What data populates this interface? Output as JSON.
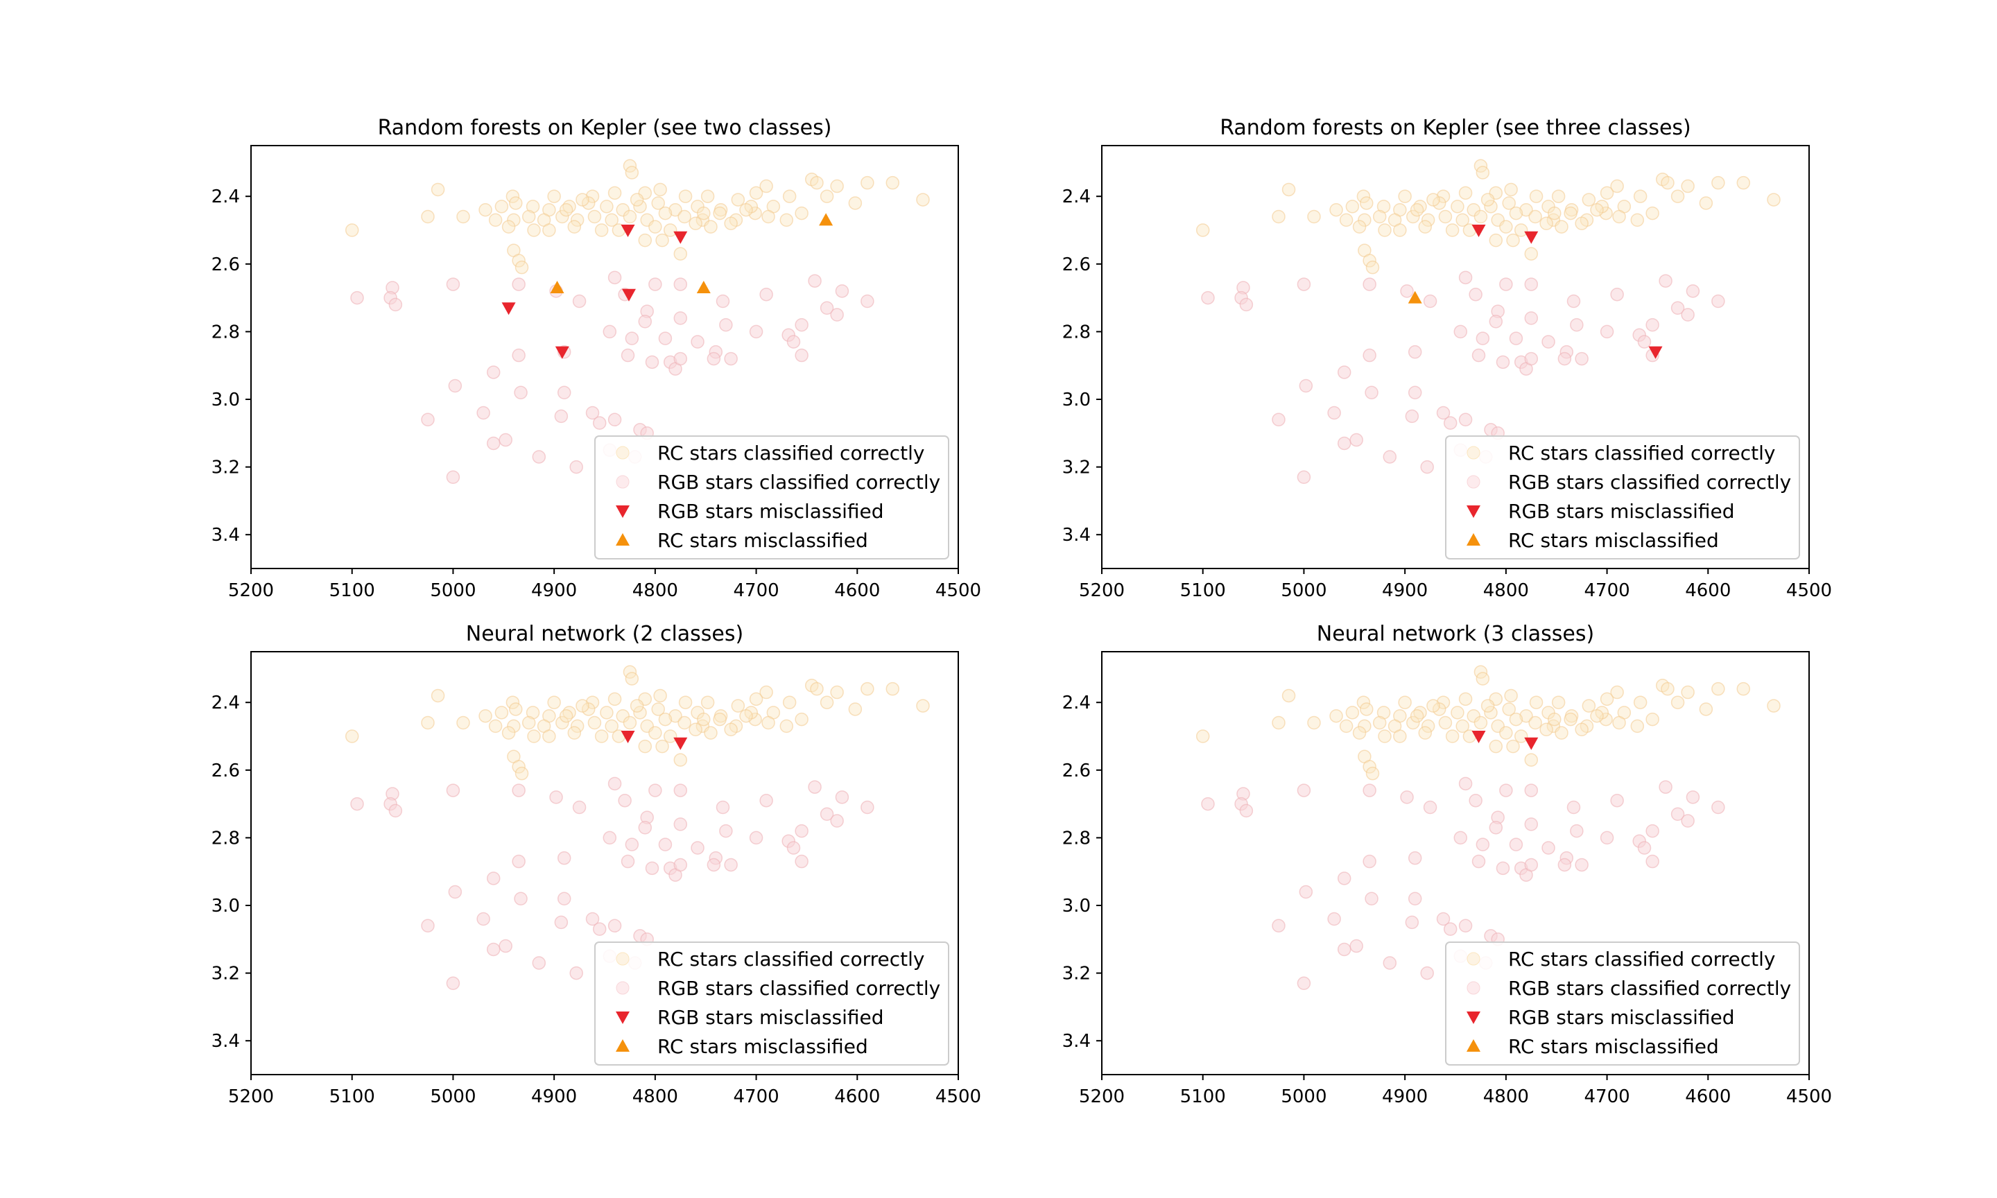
{
  "chart_data": [
    {
      "type": "scatter",
      "title": "Random forests on Kepler (see two classes)",
      "xlabel": "",
      "ylabel": "",
      "xlim": [
        5200,
        4500
      ],
      "ylim": [
        3.5,
        2.25
      ],
      "x_ticks": [
        "5200",
        "5100",
        "5000",
        "4900",
        "4800",
        "4700",
        "4600",
        "4500"
      ],
      "y_ticks": [
        "2.4",
        "2.6",
        "2.8",
        "3.0",
        "3.2",
        "3.4"
      ],
      "legend_position": "bottom-right",
      "series": [
        {
          "name": "RC stars classified correctly",
          "key": "rc_ok"
        },
        {
          "name": "RGB stars classified correctly",
          "key": "rgb_ok"
        },
        {
          "name": "RGB stars misclassified",
          "key": "rgb_mis",
          "points": [
            [
              4827,
              2.5
            ],
            [
              4775,
              2.52
            ],
            [
              4826,
              2.69
            ],
            [
              4945,
              2.73
            ],
            [
              4892,
              2.86
            ]
          ]
        },
        {
          "name": "RC stars misclassified",
          "key": "rc_mis",
          "points": [
            [
              4631,
              2.47
            ],
            [
              4897,
              2.67
            ],
            [
              4752,
              2.67
            ]
          ]
        }
      ]
    },
    {
      "type": "scatter",
      "title": "Random forests on Kepler (see three classes)",
      "xlabel": "",
      "ylabel": "",
      "xlim": [
        5200,
        4500
      ],
      "ylim": [
        3.5,
        2.25
      ],
      "x_ticks": [
        "5200",
        "5100",
        "5000",
        "4900",
        "4800",
        "4700",
        "4600",
        "4500"
      ],
      "y_ticks": [
        "2.4",
        "2.6",
        "2.8",
        "3.0",
        "3.2",
        "3.4"
      ],
      "legend_position": "bottom-right",
      "series": [
        {
          "name": "RC stars classified correctly",
          "key": "rc_ok"
        },
        {
          "name": "RGB stars classified correctly",
          "key": "rgb_ok"
        },
        {
          "name": "RGB stars misclassified",
          "key": "rgb_mis",
          "points": [
            [
              4827,
              2.5
            ],
            [
              4775,
              2.52
            ],
            [
              4652,
              2.86
            ]
          ]
        },
        {
          "name": "RC stars misclassified",
          "key": "rc_mis",
          "points": [
            [
              4890,
              2.7
            ]
          ]
        }
      ]
    },
    {
      "type": "scatter",
      "title": "Neural network (2 classes)",
      "xlabel": "",
      "ylabel": "",
      "xlim": [
        5200,
        4500
      ],
      "ylim": [
        3.5,
        2.25
      ],
      "x_ticks": [
        "5200",
        "5100",
        "5000",
        "4900",
        "4800",
        "4700",
        "4600",
        "4500"
      ],
      "y_ticks": [
        "2.4",
        "2.6",
        "2.8",
        "3.0",
        "3.2",
        "3.4"
      ],
      "legend_position": "bottom-right",
      "series": [
        {
          "name": "RC stars classified correctly",
          "key": "rc_ok"
        },
        {
          "name": "RGB stars classified correctly",
          "key": "rgb_ok"
        },
        {
          "name": "RGB stars misclassified",
          "key": "rgb_mis",
          "points": [
            [
              4827,
              2.5
            ],
            [
              4775,
              2.52
            ]
          ]
        },
        {
          "name": "RC stars misclassified",
          "key": "rc_mis",
          "points": []
        }
      ]
    },
    {
      "type": "scatter",
      "title": "Neural network (3 classes)",
      "xlabel": "",
      "ylabel": "",
      "xlim": [
        5200,
        4500
      ],
      "ylim": [
        3.5,
        2.25
      ],
      "x_ticks": [
        "5200",
        "5100",
        "5000",
        "4900",
        "4800",
        "4700",
        "4600",
        "4500"
      ],
      "y_ticks": [
        "2.4",
        "2.6",
        "2.8",
        "3.0",
        "3.2",
        "3.4"
      ],
      "legend_position": "bottom-right",
      "series": [
        {
          "name": "RC stars classified correctly",
          "key": "rc_ok"
        },
        {
          "name": "RGB stars classified correctly",
          "key": "rgb_ok"
        },
        {
          "name": "RGB stars misclassified",
          "key": "rgb_mis",
          "points": [
            [
              4827,
              2.5
            ],
            [
              4775,
              2.52
            ]
          ]
        },
        {
          "name": "RC stars misclassified",
          "key": "rc_mis",
          "points": []
        }
      ]
    }
  ],
  "shared_points": {
    "rc_ok": [
      [
        4825,
        2.31
      ],
      [
        4823,
        2.33
      ],
      [
        4795,
        2.38
      ],
      [
        4810,
        2.39
      ],
      [
        4840,
        2.39
      ],
      [
        4862,
        2.4
      ],
      [
        4900,
        2.4
      ],
      [
        4941,
        2.4
      ],
      [
        4770,
        2.4
      ],
      [
        4748,
        2.4
      ],
      [
        4700,
        2.39
      ],
      [
        4690,
        2.37
      ],
      [
        4645,
        2.35
      ],
      [
        4640,
        2.36
      ],
      [
        4620,
        2.37
      ],
      [
        4590,
        2.36
      ],
      [
        4565,
        2.36
      ],
      [
        4535,
        2.41
      ],
      [
        4602,
        2.42
      ],
      [
        4667,
        2.4
      ],
      [
        4683,
        2.43
      ],
      [
        4718,
        2.41
      ],
      [
        4735,
        2.44
      ],
      [
        4758,
        2.43
      ],
      [
        4780,
        2.44
      ],
      [
        4797,
        2.42
      ],
      [
        4815,
        2.43
      ],
      [
        4832,
        2.44
      ],
      [
        4848,
        2.43
      ],
      [
        4866,
        2.42
      ],
      [
        4885,
        2.43
      ],
      [
        4905,
        2.44
      ],
      [
        4921,
        2.43
      ],
      [
        4938,
        2.42
      ],
      [
        4952,
        2.43
      ],
      [
        4940,
        2.47
      ],
      [
        4925,
        2.46
      ],
      [
        4910,
        2.47
      ],
      [
        4892,
        2.46
      ],
      [
        4877,
        2.47
      ],
      [
        4860,
        2.46
      ],
      [
        4843,
        2.47
      ],
      [
        4825,
        2.46
      ],
      [
        4808,
        2.47
      ],
      [
        4790,
        2.45
      ],
      [
        4771,
        2.46
      ],
      [
        4753,
        2.47
      ],
      [
        4736,
        2.45
      ],
      [
        4720,
        2.47
      ],
      [
        4701,
        2.45
      ],
      [
        4688,
        2.46
      ],
      [
        4670,
        2.47
      ],
      [
        4655,
        2.45
      ],
      [
        4945,
        2.49
      ],
      [
        4920,
        2.5
      ],
      [
        4905,
        2.5
      ],
      [
        4880,
        2.49
      ],
      [
        4853,
        2.5
      ],
      [
        4836,
        2.5
      ],
      [
        4800,
        2.49
      ],
      [
        4785,
        2.5
      ],
      [
        4760,
        2.48
      ],
      [
        4745,
        2.49
      ],
      [
        4725,
        2.48
      ],
      [
        4940,
        2.56
      ],
      [
        4935,
        2.59
      ],
      [
        4932,
        2.61
      ],
      [
        4793,
        2.53
      ],
      [
        4810,
        2.53
      ],
      [
        5100,
        2.5
      ],
      [
        5015,
        2.38
      ],
      [
        5025,
        2.46
      ],
      [
        4990,
        2.46
      ],
      [
        4968,
        2.44
      ],
      [
        4958,
        2.47
      ],
      [
        4888,
        2.44
      ],
      [
        4872,
        2.41
      ],
      [
        4818,
        2.41
      ],
      [
        4705,
        2.43
      ],
      [
        4710,
        2.44
      ],
      [
        4630,
        2.4
      ],
      [
        4752,
        2.45
      ],
      [
        4775,
        2.57
      ]
    ],
    "rgb_ok": [
      [
        5095,
        2.7
      ],
      [
        5060,
        2.67
      ],
      [
        5062,
        2.7
      ],
      [
        5057,
        2.72
      ],
      [
        5000,
        2.66
      ],
      [
        4935,
        2.66
      ],
      [
        4898,
        2.68
      ],
      [
        4875,
        2.71
      ],
      [
        4840,
        2.64
      ],
      [
        4830,
        2.69
      ],
      [
        4800,
        2.66
      ],
      [
        4775,
        2.66
      ],
      [
        4733,
        2.71
      ],
      [
        4690,
        2.69
      ],
      [
        4642,
        2.65
      ],
      [
        4630,
        2.73
      ],
      [
        4615,
        2.68
      ],
      [
        4590,
        2.71
      ],
      [
        4620,
        2.75
      ],
      [
        4655,
        2.78
      ],
      [
        4700,
        2.8
      ],
      [
        4730,
        2.78
      ],
      [
        4775,
        2.76
      ],
      [
        4808,
        2.74
      ],
      [
        4810,
        2.77
      ],
      [
        4845,
        2.8
      ],
      [
        4823,
        2.82
      ],
      [
        4790,
        2.82
      ],
      [
        4758,
        2.83
      ],
      [
        4740,
        2.86
      ],
      [
        4742,
        2.88
      ],
      [
        4725,
        2.88
      ],
      [
        4668,
        2.81
      ],
      [
        4663,
        2.83
      ],
      [
        4655,
        2.87
      ],
      [
        4827,
        2.87
      ],
      [
        4803,
        2.89
      ],
      [
        4785,
        2.89
      ],
      [
        4780,
        2.91
      ],
      [
        4775,
        2.88
      ],
      [
        4935,
        2.87
      ],
      [
        4890,
        2.86
      ],
      [
        4960,
        2.92
      ],
      [
        4933,
        2.98
      ],
      [
        4890,
        2.98
      ],
      [
        4998,
        2.96
      ],
      [
        4970,
        3.04
      ],
      [
        4893,
        3.05
      ],
      [
        4862,
        3.04
      ],
      [
        4855,
        3.07
      ],
      [
        4815,
        3.09
      ],
      [
        4808,
        3.1
      ],
      [
        4845,
        3.15
      ],
      [
        4948,
        3.12
      ],
      [
        5025,
        3.06
      ],
      [
        4960,
        3.13
      ],
      [
        4915,
        3.17
      ],
      [
        4878,
        3.2
      ],
      [
        5000,
        3.23
      ],
      [
        4840,
        3.06
      ],
      [
        4820,
        3.17
      ]
    ],
    "colors": {
      "rc_fill": "#fbe6c0",
      "rc_edge": "#f2c98c",
      "rgb_fill": "#f8d6d9",
      "rgb_edge": "#efb3b8",
      "rgb_mis": "#e8252d",
      "rc_mis": "#f5910c",
      "legend_rc": "#fdf3e3",
      "legend_rgb": "#fdebed"
    },
    "marker_shapes": {
      "rgb_mis": "triangle-down",
      "rc_mis": "triangle-up"
    }
  }
}
